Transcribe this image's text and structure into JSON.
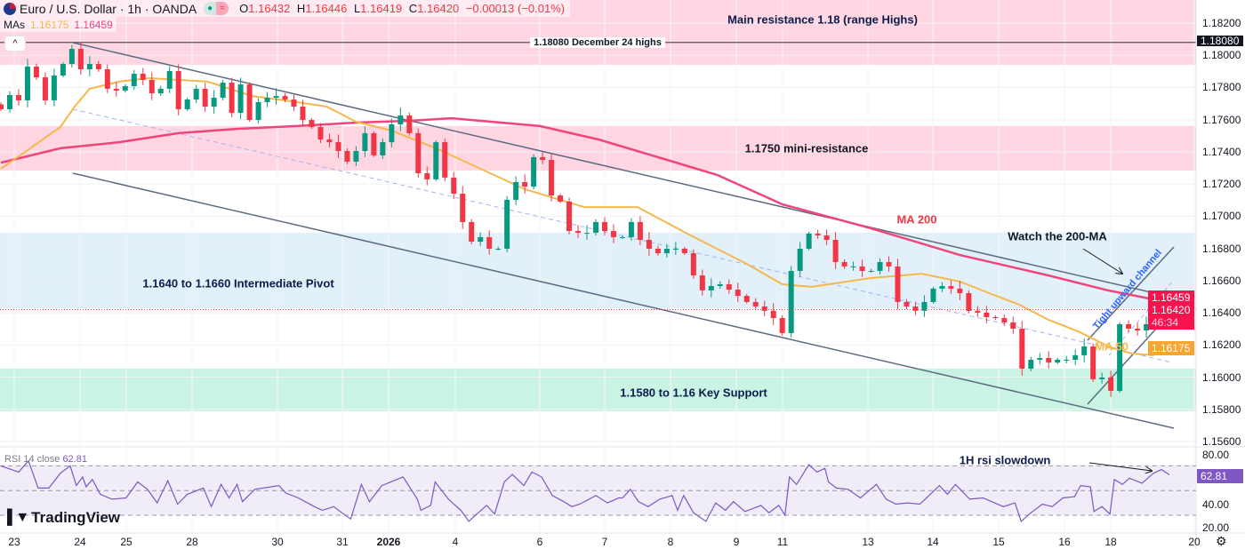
{
  "header": {
    "symbol_title": "Euro / U.S. Dollar · 1h · OANDA",
    "open_label": "O",
    "open": "1.16432",
    "high_label": "H",
    "high": "1.16446",
    "low_label": "L",
    "low": "1.16419",
    "close_label": "C",
    "close": "1.16420",
    "change": "−0.00013 (−0.01%)",
    "pill_buy": "●",
    "pill_sell": "≈",
    "mas_label": "MAs",
    "ma50_value": "1.16175",
    "ma200_value": "1.16459",
    "collapse_icon": "^"
  },
  "colors": {
    "up": "#089981",
    "down": "#f23645",
    "ma50": "#f7b84b",
    "ma200": "#f0457a",
    "rsi": "#7e57c2",
    "resistance_zone": "#ffd6e2",
    "pivot_zone": "#e1f0f9",
    "support_zone": "#c9f4e4"
  },
  "annotations": {
    "main_resistance": "Main resistance 1.18 (range Highs)",
    "dec24_highs": "1.18080 December 24 highs",
    "mini_resistance": "1.1750 mini-resistance",
    "ma200": "MA 200",
    "watch_200": "Watch the 200-MA",
    "tight_channel": "Tight upward channel",
    "pivot": "1.1640 to 1.1660 Intermediate Pivot",
    "ma50": "MA 50",
    "support": "1.1580 to 1.16 Key Support",
    "rsi_slowdown": "1H rsi slowdown"
  },
  "price_axis": {
    "labels": [
      "1.18200",
      "1.18000",
      "1.17800",
      "1.17600",
      "1.17400",
      "1.17200",
      "1.17000",
      "1.16800",
      "1.16600",
      "1.16400",
      "1.16200",
      "1.16000",
      "1.15800",
      "1.15600"
    ],
    "badge_dec24": "1.18080",
    "badge_ma200": "1.16459",
    "badge_last": "1.16420",
    "badge_countdown": "46:34",
    "badge_ma50": "1.16175"
  },
  "rsi": {
    "title": "RSI 14 close",
    "value": "62.81",
    "axis_labels": [
      "80.00",
      "40.00",
      "20.00"
    ],
    "badge": "62.81"
  },
  "time_axis": {
    "labels": [
      "23",
      "24",
      "25",
      "28",
      "30",
      "31",
      "2026",
      "4",
      "6",
      "7",
      "8",
      "9",
      "11",
      "13",
      "14",
      "15",
      "16",
      "18",
      "20"
    ]
  },
  "branding": {
    "logo_text": "TradingView"
  },
  "footer": {
    "settings_icon": "gear-icon"
  },
  "chart_data": {
    "type": "candlestick",
    "symbol": "EURUSD",
    "interval": "1h",
    "ylim": [
      1.156,
      1.183
    ],
    "closes": [
      1.17665,
      1.17753,
      1.1772,
      1.1793,
      1.17863,
      1.1772,
      1.17874,
      1.17946,
      1.1804,
      1.17913,
      1.17946,
      1.17913,
      1.17792,
      1.1778,
      1.17808,
      1.17885,
      1.17847,
      1.17764,
      1.17792,
      1.17902,
      1.17665,
      1.17725,
      1.17792,
      1.17681,
      1.17736,
      1.1783,
      1.17642,
      1.17819,
      1.17598,
      1.17709,
      1.17736,
      1.17747,
      1.17725,
      1.17681,
      1.17598,
      1.17554,
      1.17477,
      1.1746,
      1.17405,
      1.17339,
      1.17405,
      1.17516,
      1.17378,
      1.1746,
      1.17571,
      1.17626,
      1.17516,
      1.17267,
      1.17229,
      1.1746,
      1.1724,
      1.1714,
      1.16964,
      1.16842,
      1.1687,
      1.16798,
      1.16798,
      1.17102,
      1.17212,
      1.17184,
      1.17367,
      1.1735,
      1.17129,
      1.17091,
      1.16908,
      1.16897,
      1.16897,
      1.16964,
      1.16908,
      1.1687,
      1.1687,
      1.16964,
      1.16853,
      1.16798,
      1.1677,
      1.16798,
      1.16798,
      1.1677,
      1.16632,
      1.16539,
      1.16566,
      1.16577,
      1.16544,
      1.16505,
      1.16467,
      1.16439,
      1.16412,
      1.16367,
      1.16274,
      1.1666,
      1.16798,
      1.16892,
      1.16881,
      1.16853,
      1.16715,
      1.16688,
      1.16688,
      1.1666,
      1.1666,
      1.16715,
      1.16688,
      1.16467,
      1.16439,
      1.16412,
      1.16467,
      1.1655,
      1.16566,
      1.1655,
      1.16522,
      1.16412,
      1.16401,
      1.16373,
      1.16367,
      1.1634,
      1.16301,
      1.16053,
      1.16108,
      1.16119,
      1.16091,
      1.16108,
      1.16108,
      1.16136,
      1.16191,
      1.15987,
      1.15998,
      1.15915,
      1.16329,
      1.16301,
      1.1629,
      1.16329,
      1.16412,
      1.16439,
      1.1642
    ],
    "ma50": [
      [
        0,
        1.17295
      ],
      [
        3.3,
        1.17422
      ],
      [
        6.7,
        1.17554
      ],
      [
        8.3,
        1.17681
      ],
      [
        10,
        1.17792
      ],
      [
        13.3,
        1.17836
      ],
      [
        16.7,
        1.17858
      ],
      [
        23.3,
        1.17836
      ],
      [
        28.3,
        1.17747
      ],
      [
        33.3,
        1.17709
      ],
      [
        36.7,
        1.17681
      ],
      [
        40,
        1.17587
      ],
      [
        44,
        1.17532
      ],
      [
        49,
        1.17422
      ],
      [
        54,
        1.17295
      ],
      [
        59,
        1.17168
      ],
      [
        65.7,
        1.17057
      ],
      [
        71.7,
        1.17057
      ],
      [
        77.3,
        1.16892
      ],
      [
        84,
        1.16704
      ],
      [
        88,
        1.16577
      ],
      [
        91.3,
        1.16561
      ],
      [
        98,
        1.16616
      ],
      [
        103.7,
        1.16643
      ],
      [
        108,
        1.16594
      ],
      [
        111.3,
        1.16522
      ],
      [
        114.7,
        1.1645
      ],
      [
        118,
        1.16356
      ],
      [
        121.3,
        1.16285
      ],
      [
        124.7,
        1.16191
      ],
      [
        127.3,
        1.16147
      ],
      [
        129.7,
        1.16136
      ],
      [
        132,
        1.16175
      ]
    ],
    "ma200": [
      [
        0,
        1.17333
      ],
      [
        6.7,
        1.17422
      ],
      [
        13.3,
        1.1746
      ],
      [
        20,
        1.17516
      ],
      [
        26.7,
        1.17543
      ],
      [
        33.3,
        1.1756
      ],
      [
        40,
        1.17582
      ],
      [
        46,
        1.17593
      ],
      [
        50.7,
        1.17609
      ],
      [
        60.7,
        1.1756
      ],
      [
        67.3,
        1.17477
      ],
      [
        74,
        1.17367
      ],
      [
        80.7,
        1.17256
      ],
      [
        88,
        1.17074
      ],
      [
        98,
        1.16925
      ],
      [
        108,
        1.16759
      ],
      [
        118,
        1.16632
      ],
      [
        124.7,
        1.16539
      ],
      [
        132,
        1.16459
      ]
    ],
    "rsi14": [
      [
        0,
        70
      ],
      [
        2,
        65
      ],
      [
        3.1,
        74
      ],
      [
        4.2,
        52
      ],
      [
        5.4,
        52
      ],
      [
        6.7,
        64
      ],
      [
        7.8,
        70
      ],
      [
        8.5,
        54
      ],
      [
        9.2,
        61
      ],
      [
        9.6,
        53
      ],
      [
        10.3,
        59
      ],
      [
        11.2,
        47
      ],
      [
        12.5,
        43
      ],
      [
        14.1,
        44
      ],
      [
        15.4,
        57
      ],
      [
        16.5,
        51
      ],
      [
        17.6,
        40
      ],
      [
        18.8,
        58
      ],
      [
        19.9,
        39
      ],
      [
        21,
        47
      ],
      [
        22.8,
        52
      ],
      [
        23.7,
        37
      ],
      [
        24.8,
        55
      ],
      [
        25.7,
        44
      ],
      [
        26.6,
        55
      ],
      [
        27.2,
        41
      ],
      [
        28.6,
        51
      ],
      [
        31.3,
        54
      ],
      [
        32.1,
        48
      ],
      [
        33.5,
        44
      ],
      [
        35.3,
        37
      ],
      [
        36.2,
        34
      ],
      [
        37.5,
        37
      ],
      [
        38.4,
        32
      ],
      [
        39.4,
        27
      ],
      [
        40.6,
        55
      ],
      [
        41.5,
        41
      ],
      [
        42.9,
        54
      ],
      [
        44.6,
        59
      ],
      [
        45.3,
        61
      ],
      [
        46.9,
        43
      ],
      [
        47.3,
        34
      ],
      [
        48.4,
        38
      ],
      [
        48.9,
        57
      ],
      [
        50.4,
        43
      ],
      [
        51.8,
        34
      ],
      [
        52.7,
        25
      ],
      [
        53.6,
        31
      ],
      [
        54.7,
        38
      ],
      [
        55.6,
        31
      ],
      [
        56.7,
        57
      ],
      [
        57.6,
        63
      ],
      [
        58.9,
        54
      ],
      [
        59.8,
        65
      ],
      [
        60.9,
        61
      ],
      [
        62.1,
        46
      ],
      [
        63.4,
        41
      ],
      [
        64.3,
        37
      ],
      [
        65.2,
        39
      ],
      [
        67,
        46
      ],
      [
        68.3,
        40
      ],
      [
        69.6,
        44
      ],
      [
        70,
        44
      ],
      [
        70.9,
        51
      ],
      [
        71.8,
        41
      ],
      [
        72.9,
        37
      ],
      [
        74.2,
        43
      ],
      [
        75.6,
        46
      ],
      [
        76.2,
        34
      ],
      [
        76.9,
        46
      ],
      [
        78,
        32
      ],
      [
        79.4,
        25
      ],
      [
        80.5,
        40
      ],
      [
        81.6,
        34
      ],
      [
        82.5,
        41
      ],
      [
        83.8,
        33
      ],
      [
        85.6,
        38
      ],
      [
        86.5,
        32
      ],
      [
        87.6,
        38
      ],
      [
        88.3,
        30
      ],
      [
        88.8,
        61
      ],
      [
        89.6,
        55
      ],
      [
        91,
        71
      ],
      [
        91.9,
        65
      ],
      [
        92.8,
        68
      ],
      [
        93.2,
        57
      ],
      [
        94.1,
        52
      ],
      [
        95.4,
        51
      ],
      [
        96.8,
        44
      ],
      [
        98.6,
        55
      ],
      [
        99.7,
        43
      ],
      [
        100.8,
        39
      ],
      [
        102.1,
        40
      ],
      [
        103.5,
        39
      ],
      [
        104.4,
        45
      ],
      [
        105.7,
        54
      ],
      [
        106.6,
        47
      ],
      [
        107.5,
        55
      ],
      [
        109.1,
        43
      ],
      [
        110.6,
        44
      ],
      [
        112.9,
        37
      ],
      [
        114.2,
        40
      ],
      [
        114.9,
        25
      ],
      [
        116,
        32
      ],
      [
        117.3,
        39
      ],
      [
        118.4,
        37
      ],
      [
        119.6,
        44
      ],
      [
        120.9,
        45
      ],
      [
        121.6,
        54
      ],
      [
        122.7,
        53
      ],
      [
        123.1,
        33
      ],
      [
        124,
        37
      ],
      [
        124.9,
        31
      ],
      [
        125.4,
        59
      ],
      [
        126.3,
        55
      ],
      [
        127.1,
        60
      ],
      [
        128.5,
        56
      ],
      [
        129.8,
        64
      ],
      [
        130.7,
        67
      ],
      [
        131.6,
        62.81
      ]
    ],
    "rsi_levels": {
      "upper": 70,
      "middle": 50,
      "lower": 30
    },
    "rsi_ylim": [
      20,
      80
    ],
    "zones": [
      {
        "name": "main-resistance",
        "top": 1.1835,
        "bottom": 1.17941,
        "color": "#ffd6e2"
      },
      {
        "name": "mini-resistance",
        "top": 1.1756,
        "bottom": 1.17284,
        "color": "#ffd6e2"
      },
      {
        "name": "intermediate-pivot",
        "top": 1.16897,
        "bottom": 1.16428,
        "color": "#e1f0f9"
      },
      {
        "name": "key-support",
        "top": 1.16053,
        "bottom": 1.15788,
        "color": "#c9f4e4"
      }
    ],
    "horizontal_line": 1.1808,
    "last_price": 1.1642
  }
}
